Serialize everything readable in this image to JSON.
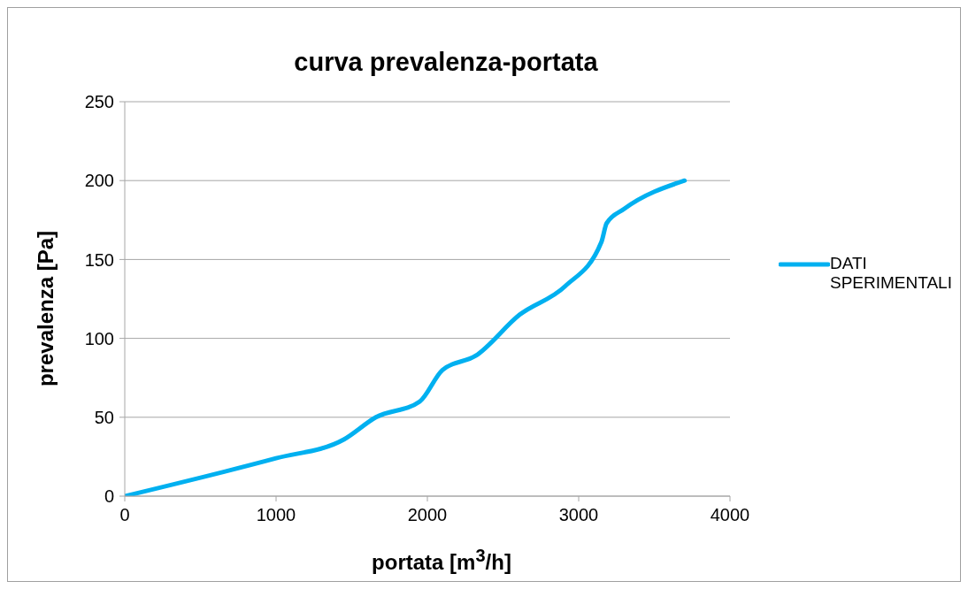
{
  "chart_data": {
    "type": "line",
    "title": "curva prevalenza-portata",
    "xlabel": "portata [m$^{3}$/h]",
    "ylabel": "prevalenza [Pa]",
    "xlim": [
      0,
      4000
    ],
    "xticks": [
      0,
      1000,
      2000,
      3000,
      4000
    ],
    "ylim": [
      0,
      250
    ],
    "yticks": [
      0,
      50,
      100,
      150,
      200,
      250
    ],
    "grid": "y",
    "legend": "right",
    "marker": "none",
    "line_style": "solid",
    "series": [
      {
        "name": "DATI SPERIMENTALI",
        "color": "#00b0f0",
        "x": [
          0,
          1000,
          1450,
          1660,
          1950,
          2100,
          2320,
          2610,
          2910,
          3150,
          3185,
          3300,
          3700
        ],
        "values": [
          0,
          24,
          36,
          50,
          60,
          80,
          89,
          115,
          133,
          161,
          173,
          182,
          200
        ]
      }
    ]
  }
}
